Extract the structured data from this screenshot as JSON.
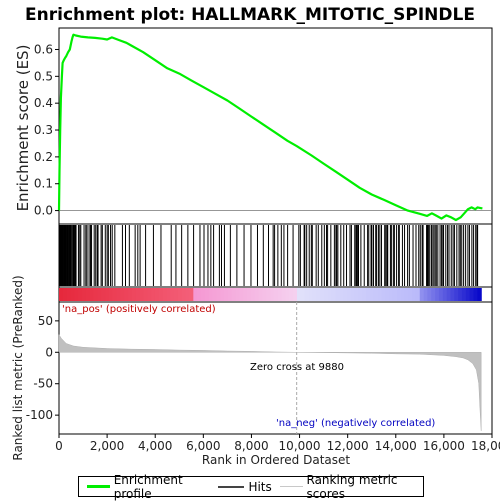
{
  "chart_data": {
    "type": "line",
    "title": "Enrichment plot: HALLMARK_MITOTIC_SPINDLE",
    "ylabel": "Enrichment score (ES)",
    "ylabel_bottom": "Ranked list metric (PreRanked)",
    "xlabel": "Rank in Ordered Dataset",
    "xlim": [
      0,
      18000
    ],
    "x_ticks": [
      0,
      2000,
      4000,
      6000,
      8000,
      10000,
      12000,
      14000,
      16000,
      18000
    ],
    "x_tick_labels": [
      "0",
      "2,000",
      "4,000",
      "6,000",
      "8,000",
      "10,000",
      "12,000",
      "14,000",
      "16,000",
      "18,000"
    ],
    "ylim": [
      -0.05,
      0.68
    ],
    "y_ticks": [
      0.0,
      0.1,
      0.2,
      0.3,
      0.4,
      0.5,
      0.6
    ],
    "y_tick_labels": [
      "0.0",
      "0.1",
      "0.2",
      "0.3",
      "0.4",
      "0.5",
      "0.6"
    ],
    "ylim_bottom": [
      -130,
      80
    ],
    "y_ticks_bottom": [
      50,
      0,
      -50,
      -100
    ],
    "y_tick_labels_bottom": [
      "50",
      "0",
      "-50",
      "-100"
    ],
    "series": [
      {
        "name": "Enrichment profile",
        "color": "#00ee00",
        "x": [
          0,
          20,
          50,
          80,
          120,
          150,
          200,
          260,
          300,
          380,
          450,
          520,
          560,
          600,
          700,
          900,
          1200,
          1500,
          1800,
          2000,
          2200,
          2500,
          2800,
          3000,
          3500,
          4000,
          4500,
          5000,
          5500,
          6000,
          6500,
          7000,
          7500,
          8000,
          8500,
          9000,
          9500,
          9880,
          10500,
          11000,
          11500,
          12000,
          12500,
          13000,
          13500,
          14000,
          14500,
          15000,
          15300,
          15500,
          15700,
          15900,
          16100,
          16300,
          16500,
          16700,
          16850,
          17000,
          17150,
          17300,
          17400,
          17600
        ],
        "y": [
          0.0,
          0.15,
          0.3,
          0.42,
          0.5,
          0.55,
          0.56,
          0.57,
          0.575,
          0.59,
          0.6,
          0.63,
          0.645,
          0.655,
          0.652,
          0.648,
          0.645,
          0.643,
          0.64,
          0.637,
          0.645,
          0.635,
          0.625,
          0.615,
          0.59,
          0.56,
          0.53,
          0.51,
          0.485,
          0.46,
          0.435,
          0.41,
          0.38,
          0.35,
          0.32,
          0.29,
          0.26,
          0.24,
          0.205,
          0.175,
          0.145,
          0.115,
          0.085,
          0.06,
          0.04,
          0.02,
          0.0,
          -0.012,
          -0.02,
          -0.01,
          -0.02,
          -0.03,
          -0.018,
          -0.025,
          -0.035,
          -0.025,
          -0.01,
          0.005,
          0.012,
          0.005,
          0.012,
          0.008
        ]
      }
    ],
    "metric_series": {
      "name": "Ranking metric scores",
      "color": "#c0c0c0",
      "x": [
        0,
        100,
        300,
        600,
        1000,
        2000,
        3000,
        4000,
        5000,
        6000,
        7000,
        8000,
        9000,
        9880,
        11000,
        12000,
        13000,
        14000,
        15000,
        15500,
        16000,
        16500,
        16800,
        17000,
        17200,
        17350,
        17450,
        17500,
        17550
      ],
      "y": [
        28,
        22,
        14,
        10,
        8,
        6,
        5,
        4.5,
        3.5,
        3,
        2,
        1.5,
        0.5,
        0,
        -0.5,
        -1,
        -1.5,
        -2.5,
        -3,
        -4,
        -5,
        -7,
        -9,
        -12,
        -18,
        -28,
        -50,
        -90,
        -125
      ]
    },
    "hits_note": "Hits",
    "annotations": {
      "pos": "'na_pos' (positively correlated)",
      "neg": "'na_neg' (negatively correlated)",
      "zero_cross": "Zero cross at 9880",
      "zero_cross_x": 9880
    },
    "legend": [
      {
        "label": "Enrichment profile",
        "color": "#00ee00"
      },
      {
        "label": "Hits",
        "color": "#000000"
      },
      {
        "label": "Ranking metric scores",
        "color": "#c0c0c0"
      }
    ],
    "legend_placement": "bottom",
    "grid": false
  }
}
